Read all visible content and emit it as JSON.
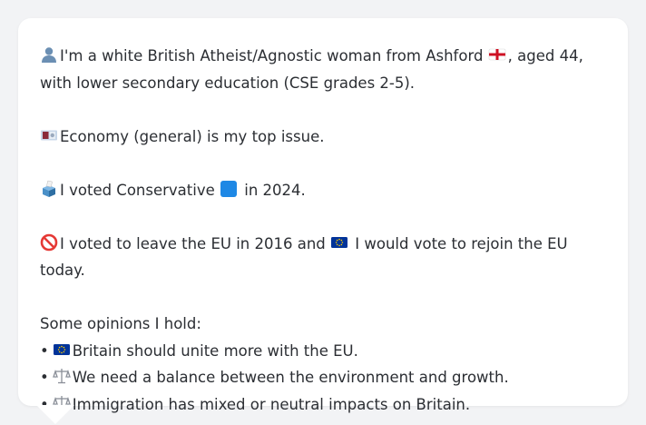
{
  "profile": {
    "line1_pre": "I'm a white British Atheist/Agnostic woman from Ashford",
    "line1_post": ", aged 44,",
    "line2": "with lower secondary education (CSE grades 2-5)."
  },
  "issue": {
    "text": "Economy (general) is my top issue."
  },
  "vote": {
    "pre": "I voted Conservative",
    "post": "in 2024."
  },
  "eu": {
    "pre": "I voted to leave the EU in 2016 and",
    "post": "I would vote to rejoin the EU today."
  },
  "opinions": {
    "heading": "Some opinions I hold:",
    "bullet": "•",
    "items": [
      {
        "icon": "eu-flag-icon",
        "text": "Britain should unite more with the EU."
      },
      {
        "icon": "balance-scale-icon",
        "text": "We need a balance between the environment and growth."
      },
      {
        "icon": "balance-scale-icon",
        "text": "Immigration has mixed or neutral impacts on Britain."
      }
    ]
  },
  "colors": {
    "background": "#f2f3f5",
    "bubble": "#ffffff",
    "text": "#2b2e33",
    "conservative_blue": "#1e88e5",
    "eu_blue": "#003399",
    "eu_gold": "#ffcc00"
  }
}
